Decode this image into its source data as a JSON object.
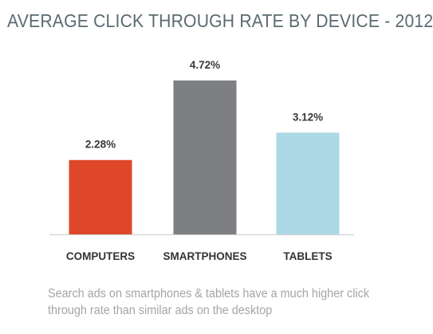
{
  "chart_data": {
    "type": "bar",
    "title": "AVERAGE CLICK THROUGH RATE BY DEVICE - 2012",
    "categories": [
      "COMPUTERS",
      "SMARTPHONES",
      "TABLETS"
    ],
    "values": [
      2.28,
      4.72,
      3.12
    ],
    "value_labels": [
      "2.28%",
      "4.72%",
      "3.12%"
    ],
    "colors": [
      "#df472b",
      "#7e7f83",
      "#add8e6"
    ],
    "ylim": [
      0,
      5
    ],
    "grid": false,
    "xlabel": "",
    "ylabel": ""
  },
  "caption": "Search ads on smartphones & tablets have a much higher click through rate than similar ads on the desktop"
}
